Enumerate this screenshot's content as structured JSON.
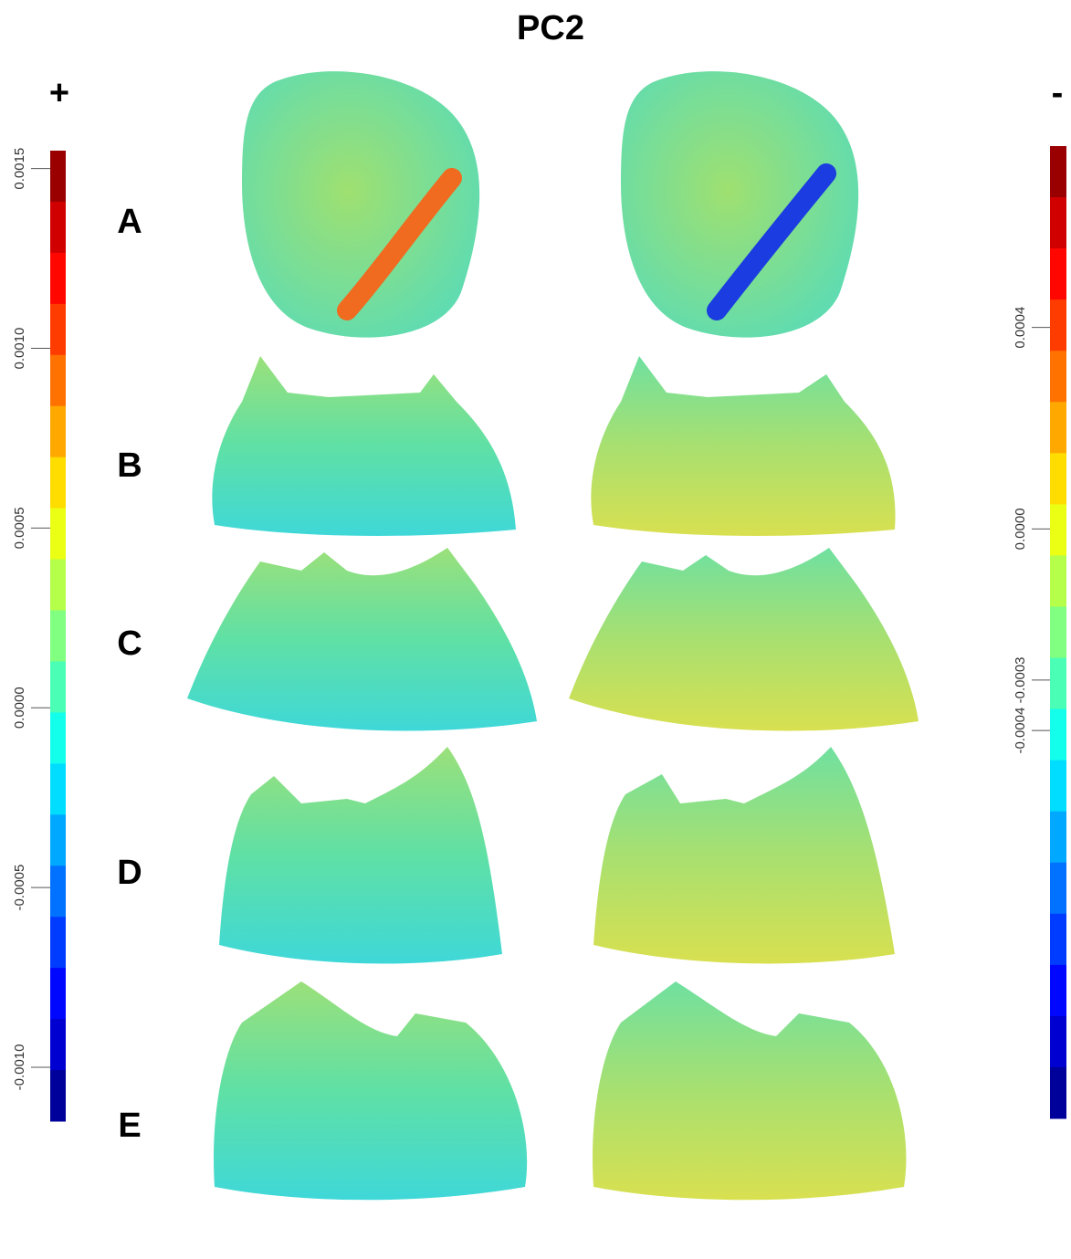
{
  "title": "PC2",
  "signs": {
    "left": "+",
    "right": "-"
  },
  "row_labels": [
    "A",
    "B",
    "C",
    "D",
    "E"
  ],
  "chart_data": [
    {
      "type": "colorbar",
      "colormap": "jet",
      "ylim": [
        -0.00115,
        0.00155
      ],
      "yticks": [
        0.0015,
        {
          "value": 0.001,
          "label": "0.0010"
        },
        0.0005,
        {
          "value": 0,
          "label": "0.0000"
        },
        -0.0005,
        {
          "value": -0.001,
          "label": "-0.0010"
        }
      ]
    },
    {
      "type": "colorbar",
      "colormap": "jet",
      "ylim": [
        -0.00117,
        0.00076
      ],
      "yticks": [
        0.0004,
        {
          "value": 0,
          "label": "0.0000"
        },
        -0.0004,
        -0.0003
      ]
    }
  ]
}
